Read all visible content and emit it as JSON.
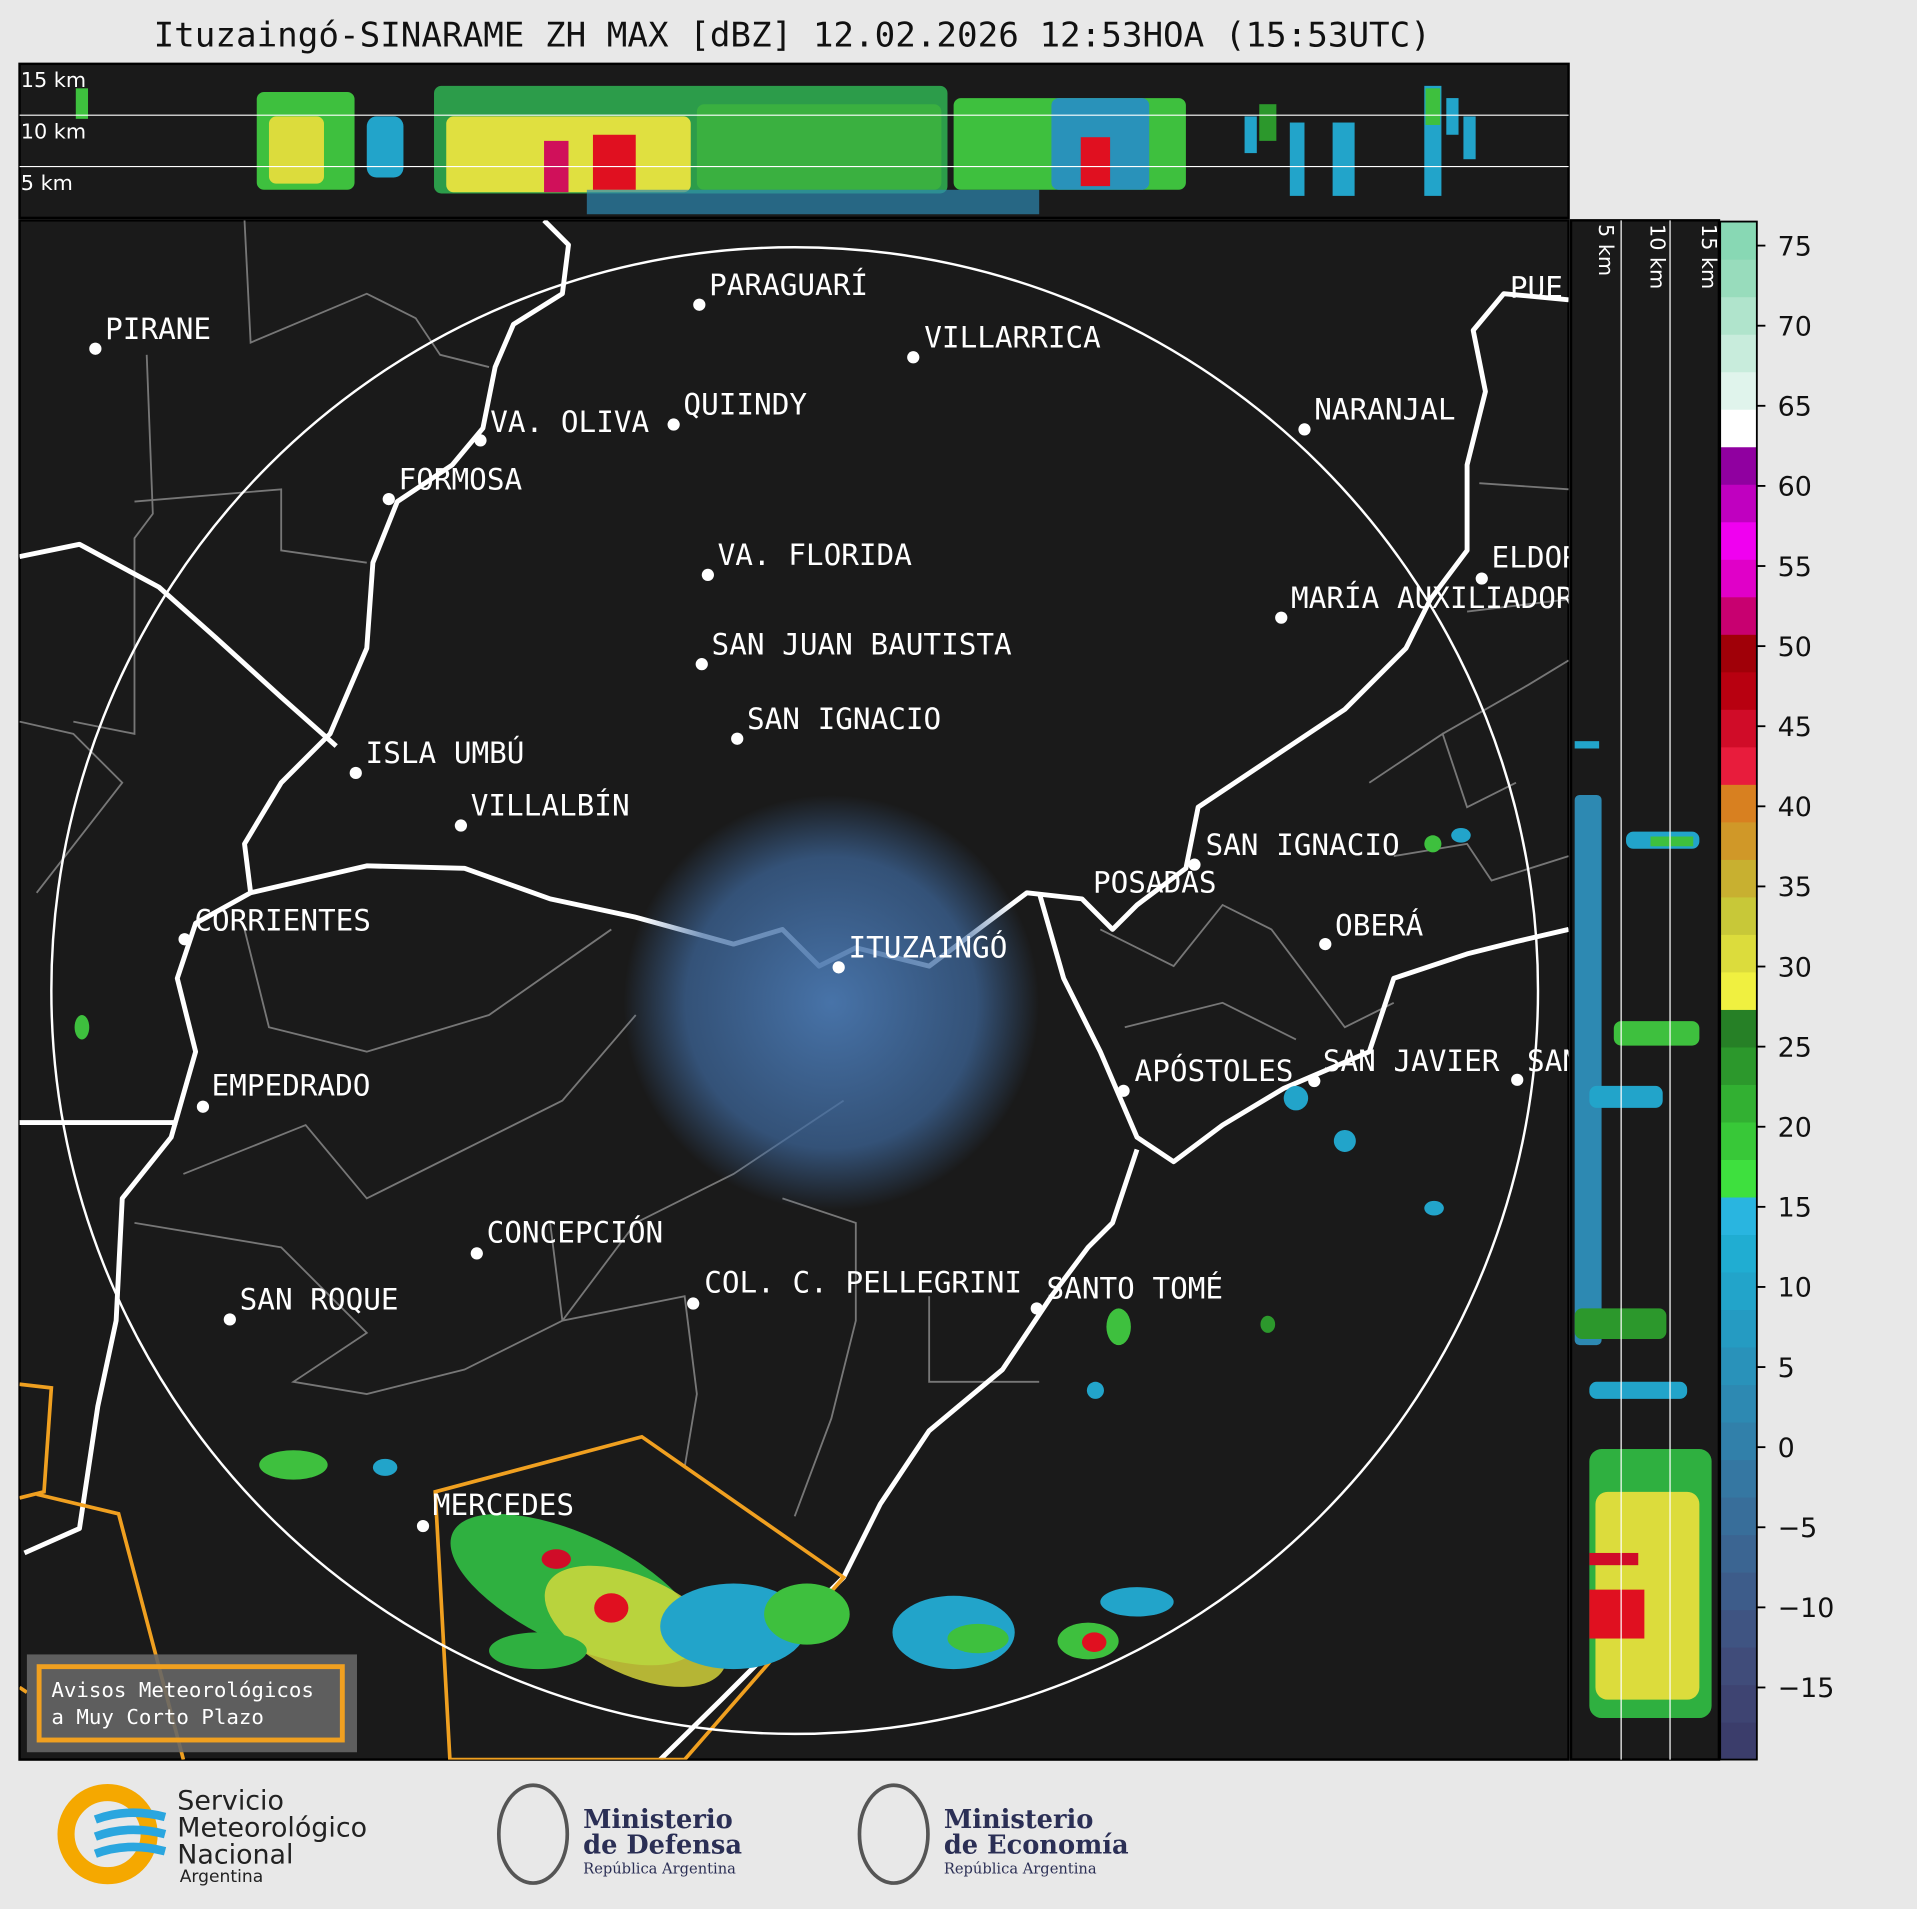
{
  "title": "Ituzaingó-SINARAME ZH MAX [dBZ] 12.02.2026 12:53HOA (15:53UTC)",
  "top_panel_labels": [
    "15 km",
    "10 km",
    "5 km"
  ],
  "side_panel_labels": [
    "5 km",
    "10 km",
    "15 km"
  ],
  "cities": [
    "PARAGUARÍ",
    "VILLARRICA",
    "PIRANE",
    "QUIINDY",
    "VA. OLIVA",
    "FORMOSA",
    "NARANJAL",
    "VA. FLORIDA",
    "ELDOR",
    "MARÍA AUXILIADOR",
    "SAN JUAN BAUTISTA",
    "SAN IGNACIO",
    "ISLA UMBÚ",
    "VILLALBÍN",
    "SAN IGNACIO",
    "POSADAS",
    "CORRIENTES",
    "ITUZAINGÓ",
    "OBERÁ",
    "EMPEDRADO",
    "APÓSTOLES",
    "SAN JAVIER",
    "SAN",
    "CONCEPCIÓN",
    "COL. C. PELLEGRINI",
    "SANTO TOMÉ",
    "SAN ROQUE",
    "MERCEDES",
    "PUE"
  ],
  "colorbar": {
    "lim": [
      -19.5,
      76.5
    ],
    "ticks": [
      75,
      70,
      65,
      60,
      55,
      50,
      45,
      40,
      35,
      30,
      25,
      20,
      15,
      10,
      5,
      0,
      {
        "value": -5,
        "label": "−5"
      },
      {
        "value": -10,
        "label": "−10"
      },
      {
        "value": -15,
        "label": "−15"
      }
    ],
    "colors": [
      "#3b3d6b",
      "#3e4472",
      "#404c7a",
      "#3f5482",
      "#3d5c8a",
      "#3b6592",
      "#386e9a",
      "#3577a2",
      "#3180aa",
      "#2d89b2",
      "#2992ba",
      "#259bc2",
      "#22a4ca",
      "#20add2",
      "#29b5e0",
      "#3ee03e",
      "#38c838",
      "#32b032",
      "#2c982c",
      "#268026",
      "#f0f040",
      "#dcdc3c",
      "#c8c838",
      "#c8b030",
      "#d09828",
      "#d88020",
      "#e81c3c",
      "#d00c28",
      "#b80010",
      "#a00008",
      "#c80070",
      "#e000c8",
      "#f000f0",
      "#c000c0",
      "#9000a0",
      "#ffffff",
      "#e0f4ec",
      "#c8ecdc",
      "#b0e4cc",
      "#98dcbc",
      "#88d8b4"
    ]
  },
  "warning_box": [
    "Avisos Meteorológicos",
    "a Muy Corto Plazo"
  ],
  "logos": {
    "smn": [
      "Servicio",
      "Meteorológico",
      "Nacional",
      "Argentina"
    ],
    "defensa": [
      "Ministerio",
      "de Defensa",
      "República Argentina"
    ],
    "economia": [
      "Ministerio",
      "de Economía",
      "República Argentina"
    ]
  }
}
